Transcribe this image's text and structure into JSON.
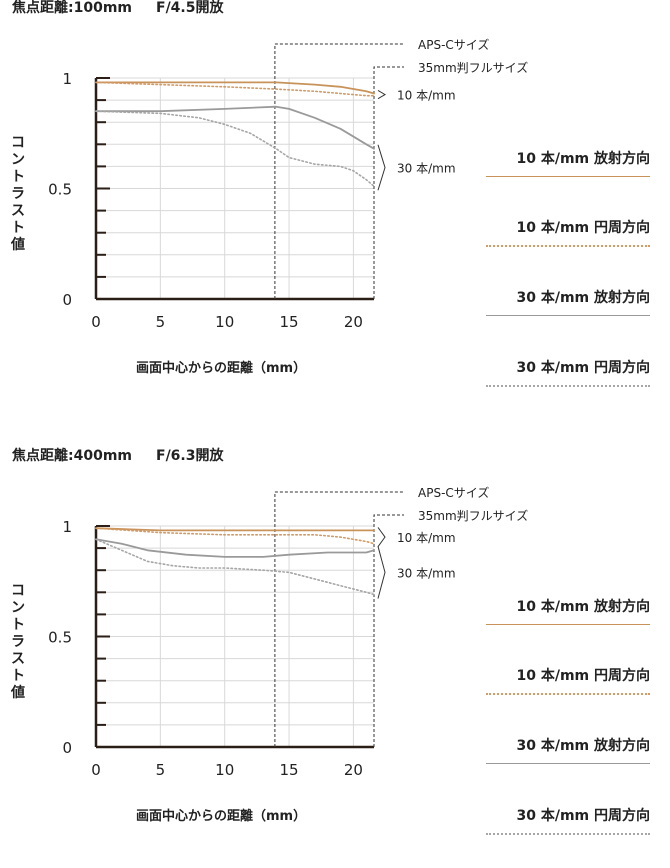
{
  "colors": {
    "sagittal_10": "#c8935a",
    "meridional_10": "#d39a63",
    "sagittal_30": "#9a9a9a",
    "meridional_30": "#a6a6a6",
    "axis": "#2b1e17",
    "grid": "#d8d8d8"
  },
  "legend": [
    {
      "label": "10 本/mm 放射方向",
      "color": "#c8935a",
      "style": "solid"
    },
    {
      "label": "10 本/mm 円周方向",
      "color": "#d39a63",
      "style": "dotted"
    },
    {
      "label": "30 本/mm 放射方向",
      "color": "#9a9a9a",
      "style": "solid"
    },
    {
      "label": "30 本/mm 円周方向",
      "color": "#a6a6a6",
      "style": "dotted"
    }
  ],
  "ylabel": "コントラスト値",
  "xlabel": "画面中心からの距離（mm）",
  "annotations": {
    "apsc": "APS-Cサイズ",
    "full": "35mm判フルサイズ",
    "lp10": "10 本/mm",
    "lp30": "30 本/mm"
  },
  "chart_data": [
    {
      "type": "line",
      "title": "焦点距離:100mm　 F/4.5開放",
      "title_left": "焦点距離:100mm",
      "title_right": "F/4.5開放",
      "xlabel": "画面中心からの距離（mm）",
      "ylabel": "コントラスト値",
      "xlim": [
        0,
        21.6
      ],
      "ylim": [
        0,
        1
      ],
      "xticks": [
        "0",
        "5",
        "10",
        "15",
        "20"
      ],
      "yticks": [
        "0",
        "0.5",
        "1"
      ],
      "markers": [
        {
          "label": "APS-Cサイズ",
          "x": 13.9
        },
        {
          "label": "35mm判フルサイズ",
          "x": 21.6
        }
      ],
      "series": [
        {
          "name": "10 本/mm 放射方向",
          "style": "solid",
          "color": "#c8935a",
          "x": [
            0,
            5,
            10,
            14,
            17,
            19,
            21,
            21.6
          ],
          "y": [
            0.98,
            0.98,
            0.98,
            0.98,
            0.97,
            0.96,
            0.94,
            0.93
          ]
        },
        {
          "name": "10 本/mm 円周方向",
          "style": "dotted",
          "color": "#d39a63",
          "x": [
            0,
            5,
            10,
            14,
            17,
            19,
            21,
            21.6
          ],
          "y": [
            0.98,
            0.97,
            0.96,
            0.95,
            0.94,
            0.93,
            0.92,
            0.92
          ]
        },
        {
          "name": "30 本/mm 放射方向",
          "style": "solid",
          "color": "#9a9a9a",
          "x": [
            0,
            5,
            10,
            14,
            15,
            17,
            19,
            21,
            21.6
          ],
          "y": [
            0.85,
            0.85,
            0.86,
            0.87,
            0.86,
            0.82,
            0.77,
            0.7,
            0.68
          ]
        },
        {
          "name": "30 本/mm 円周方向",
          "style": "dotted",
          "color": "#a6a6a6",
          "x": [
            0,
            5,
            8,
            10,
            12,
            14,
            15,
            17,
            19,
            20,
            21,
            21.6
          ],
          "y": [
            0.85,
            0.84,
            0.82,
            0.79,
            0.75,
            0.68,
            0.64,
            0.61,
            0.6,
            0.58,
            0.54,
            0.51
          ]
        }
      ]
    },
    {
      "type": "line",
      "title": "焦点距離:400mm　 F/6.3開放",
      "title_left": "焦点距離:400mm",
      "title_right": "F/6.3開放",
      "xlabel": "画面中心からの距離（mm）",
      "ylabel": "コントラスト値",
      "xlim": [
        0,
        21.6
      ],
      "ylim": [
        0,
        1
      ],
      "xticks": [
        "0",
        "5",
        "10",
        "15",
        "20"
      ],
      "yticks": [
        "0",
        "0.5",
        "1"
      ],
      "markers": [
        {
          "label": "APS-Cサイズ",
          "x": 13.9
        },
        {
          "label": "35mm判フルサイズ",
          "x": 21.6
        }
      ],
      "series": [
        {
          "name": "10 本/mm 放射方向",
          "style": "solid",
          "color": "#c8935a",
          "x": [
            0,
            5,
            10,
            14,
            17,
            19,
            21,
            21.6
          ],
          "y": [
            0.99,
            0.98,
            0.98,
            0.98,
            0.98,
            0.98,
            0.98,
            0.98
          ]
        },
        {
          "name": "10 本/mm 円周方向",
          "style": "dotted",
          "color": "#d39a63",
          "x": [
            0,
            5,
            10,
            14,
            17,
            19,
            21,
            21.6
          ],
          "y": [
            0.99,
            0.97,
            0.96,
            0.96,
            0.96,
            0.95,
            0.93,
            0.92
          ]
        },
        {
          "name": "30 本/mm 放射方向",
          "style": "solid",
          "color": "#9a9a9a",
          "x": [
            0,
            2,
            4,
            7,
            10,
            13,
            15,
            18,
            21,
            21.6
          ],
          "y": [
            0.94,
            0.92,
            0.89,
            0.87,
            0.86,
            0.86,
            0.87,
            0.88,
            0.88,
            0.89
          ]
        },
        {
          "name": "30 本/mm 円周方向",
          "style": "dotted",
          "color": "#a6a6a6",
          "x": [
            0,
            2,
            4,
            6,
            8,
            10,
            13,
            15,
            17,
            19,
            21,
            21.6
          ],
          "y": [
            0.94,
            0.89,
            0.84,
            0.82,
            0.81,
            0.81,
            0.8,
            0.79,
            0.76,
            0.73,
            0.7,
            0.69
          ]
        }
      ]
    }
  ]
}
